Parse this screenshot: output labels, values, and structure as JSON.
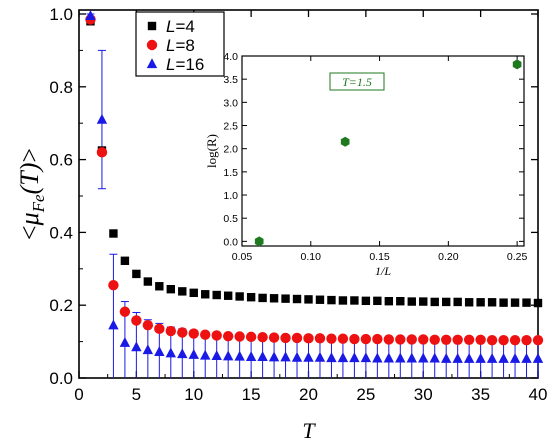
{
  "chart_data": [
    {
      "type": "scatter",
      "xlabel": "T",
      "ylabel_parts": [
        "<",
        "μ",
        "Fe",
        "(T)",
        ">"
      ],
      "xlim": [
        0,
        40
      ],
      "ylim": [
        0,
        1.0
      ],
      "xticks": [
        "0",
        "5",
        "10",
        "15",
        "20",
        "25",
        "30",
        "35",
        "40"
      ],
      "yticks": [
        "0.0",
        "0.2",
        "0.4",
        "0.6",
        "0.8",
        "1.0"
      ],
      "grid": false,
      "legend_position": "top-left-of-inset",
      "series": [
        {
          "name_prefix": "L",
          "name_value": "=4",
          "marker": "square",
          "color": "#000000",
          "x": [
            1,
            2,
            3,
            4,
            5,
            6,
            7,
            8,
            9,
            10,
            11,
            12,
            13,
            14,
            15,
            16,
            17,
            18,
            19,
            20,
            21,
            22,
            23,
            24,
            25,
            26,
            27,
            28,
            29,
            30,
            31,
            32,
            33,
            34,
            35,
            36,
            37,
            38,
            39,
            40
          ],
          "y": [
            0.98,
            0.625,
            0.397,
            0.322,
            0.286,
            0.265,
            0.252,
            0.244,
            0.238,
            0.234,
            0.23,
            0.228,
            0.226,
            0.224,
            0.222,
            0.22,
            0.219,
            0.218,
            0.217,
            0.216,
            0.215,
            0.214,
            0.213,
            0.213,
            0.212,
            0.212,
            0.211,
            0.211,
            0.21,
            0.21,
            0.209,
            0.209,
            0.209,
            0.208,
            0.208,
            0.208,
            0.207,
            0.207,
            0.207,
            0.206
          ]
        },
        {
          "name_prefix": "L",
          "name_value": "=8",
          "marker": "circle",
          "color": "#ee1111",
          "x": [
            1,
            2,
            3,
            4,
            5,
            6,
            7,
            8,
            9,
            10,
            11,
            12,
            13,
            14,
            15,
            16,
            17,
            18,
            19,
            20,
            21,
            22,
            23,
            24,
            25,
            26,
            27,
            28,
            29,
            30,
            31,
            32,
            33,
            34,
            35,
            36,
            37,
            38,
            39,
            40
          ],
          "y": [
            0.985,
            0.62,
            0.255,
            0.182,
            0.158,
            0.145,
            0.135,
            0.129,
            0.125,
            0.122,
            0.119,
            0.117,
            0.115,
            0.114,
            0.113,
            0.112,
            0.111,
            0.11,
            0.11,
            0.109,
            0.109,
            0.108,
            0.108,
            0.107,
            0.107,
            0.107,
            0.106,
            0.106,
            0.106,
            0.106,
            0.105,
            0.105,
            0.105,
            0.105,
            0.105,
            0.104,
            0.104,
            0.104,
            0.104,
            0.104
          ]
        },
        {
          "name_prefix": "L",
          "name_value": "=16",
          "marker": "triangle",
          "color": "#1a1ae6",
          "x": [
            1,
            2,
            3,
            4,
            5,
            6,
            7,
            8,
            9,
            10,
            11,
            12,
            13,
            14,
            15,
            16,
            17,
            18,
            19,
            20,
            21,
            22,
            23,
            24,
            25,
            26,
            27,
            28,
            29,
            30,
            31,
            32,
            33,
            34,
            35,
            36,
            37,
            38,
            39,
            40
          ],
          "y": [
            0.995,
            0.71,
            0.145,
            0.097,
            0.085,
            0.077,
            0.072,
            0.068,
            0.066,
            0.064,
            0.062,
            0.061,
            0.06,
            0.059,
            0.058,
            0.058,
            0.057,
            0.057,
            0.056,
            0.056,
            0.056,
            0.055,
            0.055,
            0.055,
            0.055,
            0.054,
            0.054,
            0.054,
            0.054,
            0.054,
            0.054,
            0.053,
            0.053,
            0.053,
            0.053,
            0.053,
            0.053,
            0.053,
            0.053,
            0.053
          ],
          "err_upper": [
            1.0,
            0.9,
            0.34,
            0.21,
            0.18,
            0.16,
            0.15,
            0.14,
            0.135,
            0.13,
            0.125,
            0.122,
            0.12,
            0.118,
            0.116,
            0.115,
            0.114,
            0.113,
            0.112,
            0.111,
            0.111,
            0.11,
            0.11,
            0.109,
            0.109,
            0.108,
            0.108,
            0.108,
            0.107,
            0.107,
            0.107,
            0.106,
            0.106,
            0.106,
            0.106,
            0.106,
            0.105,
            0.105,
            0.105,
            0.105
          ],
          "err_lower": [
            0.99,
            0.52,
            0.0,
            0.0,
            0.0,
            0.0,
            0.0,
            0.0,
            0.0,
            0.0,
            0.0,
            0.0,
            0.0,
            0.0,
            0.0,
            0.0,
            0.0,
            0.0,
            0.0,
            0.0,
            0.0,
            0.0,
            0.0,
            0.0,
            0.0,
            0.0,
            0.0,
            0.0,
            0.0,
            0.0,
            0.0,
            0.0,
            0.0,
            0.0,
            0.0,
            0.0,
            0.0,
            0.0,
            0.0,
            0.0
          ]
        }
      ]
    },
    {
      "type": "scatter",
      "xlabel": "1/L",
      "ylabel": "log(R)",
      "xlim": [
        0.05,
        0.255
      ],
      "ylim": [
        -0.1,
        4.0
      ],
      "xticks": [
        "0.05",
        "0.10",
        "0.15",
        "0.20",
        "0.25"
      ],
      "yticks": [
        "0.0",
        "0.5",
        "1.0",
        "1.5",
        "2.0",
        "2.5",
        "3.0",
        "3.5",
        "4.0"
      ],
      "annotation": "T=1.5",
      "series": [
        {
          "marker": "hexagon",
          "color": "#1f7a1f",
          "x": [
            0.0625,
            0.125,
            0.25
          ],
          "y": [
            0.0,
            2.15,
            3.82
          ]
        }
      ]
    }
  ]
}
